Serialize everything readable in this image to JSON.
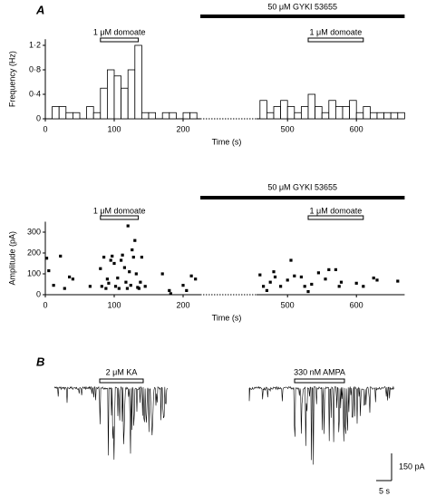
{
  "chart_data": [
    {
      "type": "histogram",
      "panel": "A",
      "ylabel": "Frequency (Hz)",
      "xlabel": "Time (s)",
      "bins": [
        10,
        20,
        30,
        40,
        50,
        60,
        70,
        80,
        90,
        100,
        110,
        120,
        130,
        140,
        150,
        160,
        170,
        180,
        190,
        200,
        210,
        220,
        230,
        240,
        250,
        260,
        270,
        280,
        290,
        300,
        310,
        320,
        330,
        340,
        350,
        360,
        370,
        380,
        390,
        400,
        410,
        420,
        430,
        440,
        450,
        460,
        470,
        480,
        490,
        500,
        510,
        520,
        530,
        540,
        550,
        560,
        570,
        580,
        590,
        600,
        610,
        620,
        630,
        640,
        650,
        660,
        670
      ],
      "values": [
        0.2,
        0.2,
        0.1,
        0.1,
        0,
        0.2,
        0.1,
        0.5,
        0.8,
        0.7,
        0.5,
        0.8,
        1.2,
        0.1,
        0.1,
        0,
        0.1,
        0.1,
        0,
        0.1,
        0.1,
        null,
        null,
        null,
        null,
        null,
        null,
        null,
        null,
        null,
        null,
        null,
        null,
        null,
        null,
        null,
        null,
        null,
        null,
        null,
        null,
        null,
        null,
        null,
        null,
        0.3,
        0.1,
        0.2,
        0.3,
        0.2,
        0.1,
        0.2,
        0.4,
        0.2,
        0.1,
        0.3,
        0.2,
        0.2,
        0.3,
        0.1,
        0.2,
        0.1,
        0.1,
        0.1,
        0.1,
        0.1
      ],
      "color": "#ffffff",
      "xlim": [
        0,
        670
      ],
      "xbreak": [
        225,
        455
      ],
      "xticks": [
        0,
        100,
        200,
        500,
        600
      ],
      "ylim": [
        0,
        1.3
      ],
      "yticks": [
        0,
        {
          "value": 0.4,
          "label": "0·4"
        },
        {
          "value": 0.8,
          "label": "0·8"
        },
        {
          "value": 1.2,
          "label": "1·2"
        }
      ],
      "annotations": [
        {
          "text": "1 μM domoate",
          "x": [
            80,
            135
          ],
          "style": "open"
        },
        {
          "text": "50 μM GYKI 53655",
          "x": [
            225,
            670
          ],
          "style": "solid"
        },
        {
          "text": "1 μM domoate",
          "x": [
            530,
            610
          ],
          "style": "open"
        }
      ]
    },
    {
      "type": "scatter",
      "ylabel": "Amplitude (pA)",
      "xlabel": "Time (s)",
      "x": [
        2,
        5,
        12,
        22,
        28,
        35,
        40,
        65,
        80,
        82,
        85,
        88,
        90,
        92,
        95,
        97,
        100,
        102,
        105,
        107,
        110,
        112,
        115,
        117,
        119,
        120,
        122,
        124,
        126,
        128,
        130,
        132,
        134,
        136,
        138,
        140,
        145,
        170,
        180,
        182,
        200,
        205,
        212,
        218,
        460,
        465,
        470,
        475,
        480,
        482,
        490,
        500,
        505,
        510,
        520,
        525,
        530,
        535,
        545,
        555,
        560,
        570,
        575,
        578,
        600,
        610,
        625,
        630,
        660
      ],
      "values": [
        175,
        115,
        45,
        185,
        30,
        85,
        75,
        40,
        125,
        40,
        180,
        30,
        75,
        55,
        165,
        185,
        150,
        40,
        80,
        30,
        165,
        190,
        130,
        60,
        30,
        330,
        110,
        45,
        215,
        180,
        260,
        100,
        35,
        30,
        60,
        180,
        40,
        100,
        20,
        5,
        45,
        20,
        90,
        75,
        95,
        40,
        20,
        60,
        110,
        85,
        40,
        70,
        165,
        90,
        85,
        40,
        15,
        50,
        105,
        75,
        120,
        120,
        40,
        60,
        55,
        40,
        80,
        70,
        65
      ],
      "color": "#000000",
      "xlim": [
        0,
        670
      ],
      "xbreak": [
        225,
        455
      ],
      "xticks": [
        0,
        100,
        200,
        500,
        600
      ],
      "ylim": [
        0,
        350
      ],
      "yticks": [
        0,
        100,
        200,
        300
      ],
      "annotations": [
        {
          "text": "1 μM domoate",
          "x": [
            80,
            135
          ],
          "style": "open"
        },
        {
          "text": "50 μM GYKI 53655",
          "x": [
            225,
            670
          ],
          "style": "solid"
        },
        {
          "text": "1 μM domoate",
          "x": [
            530,
            610
          ],
          "style": "open"
        }
      ]
    },
    {
      "type": "trace",
      "panel": "B",
      "annotations": [
        {
          "text": "2 μM KA"
        },
        {
          "text": "330 nM AMPA"
        }
      ],
      "scale_bar": {
        "y_label": "150 pA",
        "x_label": "5 s"
      }
    }
  ]
}
